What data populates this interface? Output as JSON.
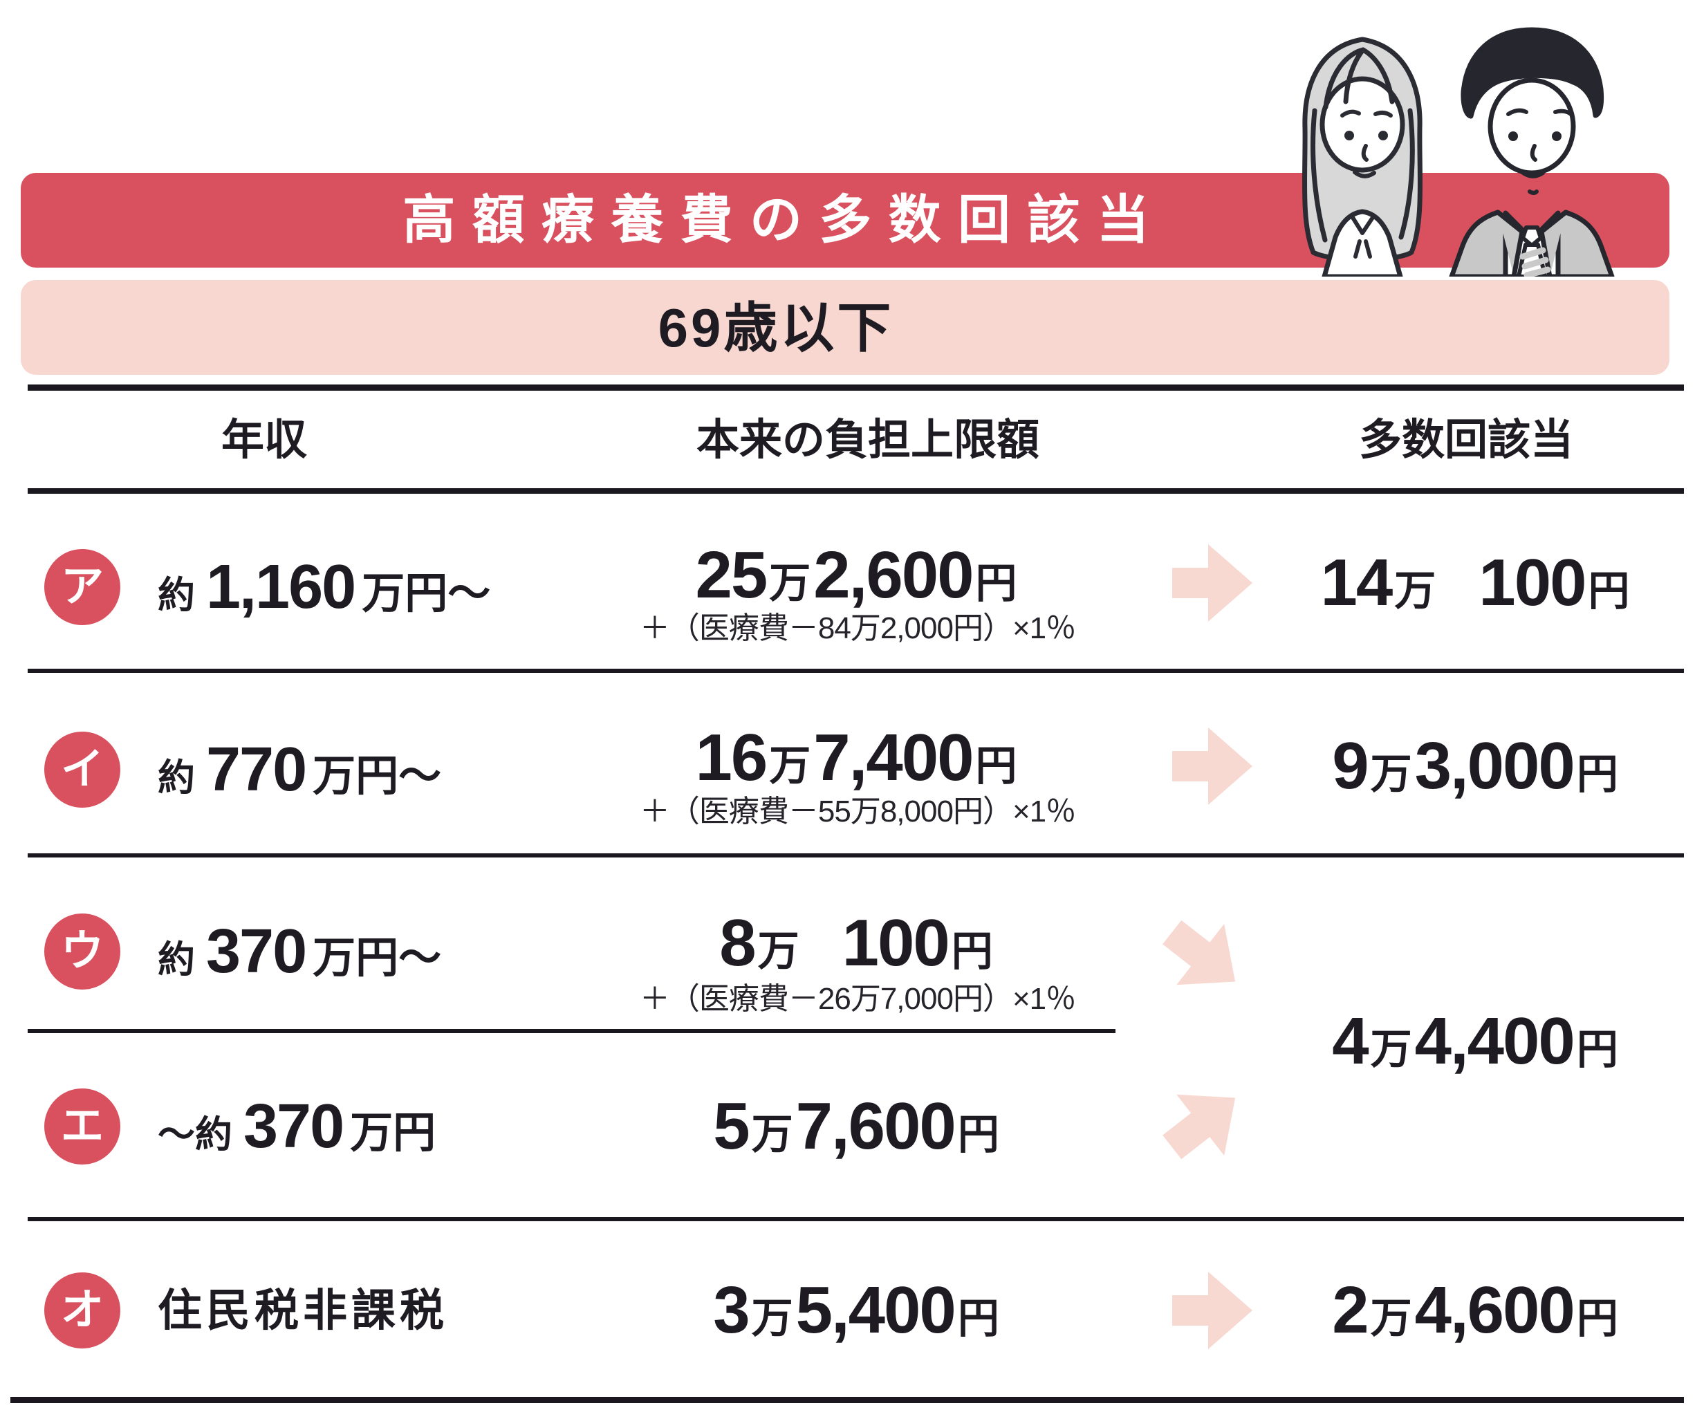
{
  "title": "高額療養費の多数回該当",
  "age_band": "69歳以下",
  "columns": {
    "income": "年収",
    "limit": "本来の負担上限額",
    "multi": "多数回該当"
  },
  "rows": [
    {
      "badge": "ア",
      "income": [
        {
          "t": "約",
          "k": "pre"
        },
        {
          "t": "1,160",
          "k": "num"
        },
        {
          "t": "万円〜",
          "k": "unit"
        }
      ],
      "limit": [
        {
          "t": "25",
          "k": "num"
        },
        {
          "t": "万",
          "k": "unit"
        },
        {
          "t": "2,600",
          "k": "num"
        },
        {
          "t": "円",
          "k": "unit"
        }
      ],
      "formula": "＋（医療費－84万2,000円）×1％",
      "multi": [
        {
          "t": "14",
          "k": "num"
        },
        {
          "t": "万",
          "k": "unit"
        },
        {
          "k": "gap"
        },
        {
          "t": "100",
          "k": "num"
        },
        {
          "t": "円",
          "k": "unit"
        }
      ]
    },
    {
      "badge": "イ",
      "income": [
        {
          "t": "約",
          "k": "pre"
        },
        {
          "t": "770",
          "k": "num"
        },
        {
          "t": "万円〜",
          "k": "unit"
        }
      ],
      "limit": [
        {
          "t": "16",
          "k": "num"
        },
        {
          "t": "万",
          "k": "unit"
        },
        {
          "t": "7,400",
          "k": "num"
        },
        {
          "t": "円",
          "k": "unit"
        }
      ],
      "formula": "＋（医療費－55万8,000円）×1％",
      "multi": [
        {
          "t": "9",
          "k": "num"
        },
        {
          "t": "万",
          "k": "unit"
        },
        {
          "t": "3,000",
          "k": "num"
        },
        {
          "t": "円",
          "k": "unit"
        }
      ]
    },
    {
      "badge": "ウ",
      "income": [
        {
          "t": "約",
          "k": "pre"
        },
        {
          "t": "370",
          "k": "num"
        },
        {
          "t": "万円〜",
          "k": "unit"
        }
      ],
      "limit": [
        {
          "t": "8",
          "k": "num"
        },
        {
          "t": "万",
          "k": "unit"
        },
        {
          "k": "gap"
        },
        {
          "t": "100",
          "k": "num"
        },
        {
          "t": "円",
          "k": "unit"
        }
      ],
      "formula": "＋（医療費－26万7,000円）×1％"
    },
    {
      "badge": "エ",
      "income": [
        {
          "t": "〜約",
          "k": "pre"
        },
        {
          "t": "370",
          "k": "num"
        },
        {
          "t": "万円",
          "k": "unit"
        }
      ],
      "limit": [
        {
          "t": "5",
          "k": "num"
        },
        {
          "t": "万",
          "k": "unit"
        },
        {
          "t": "7,600",
          "k": "num"
        },
        {
          "t": "円",
          "k": "unit"
        }
      ]
    },
    {
      "badge": "オ",
      "income": [
        {
          "t": "住民税非課税",
          "k": "label"
        }
      ],
      "limit": [
        {
          "t": "3",
          "k": "num"
        },
        {
          "t": "万",
          "k": "unit"
        },
        {
          "t": "5,400",
          "k": "num"
        },
        {
          "t": "円",
          "k": "unit"
        }
      ],
      "multi": [
        {
          "t": "2",
          "k": "num"
        },
        {
          "t": "万",
          "k": "unit"
        },
        {
          "t": "4,600",
          "k": "num"
        },
        {
          "t": "円",
          "k": "unit"
        }
      ]
    }
  ],
  "merged_multi": [
    {
      "t": "4",
      "k": "num"
    },
    {
      "t": "万",
      "k": "unit"
    },
    {
      "t": "4,400",
      "k": "num"
    },
    {
      "t": "円",
      "k": "unit"
    }
  ],
  "colors": {
    "accent_red": "#d9515f",
    "band_pink": "#f7d7cf",
    "arrow_pink": "#f8d9d1",
    "text_dark": "#1e1b23"
  }
}
